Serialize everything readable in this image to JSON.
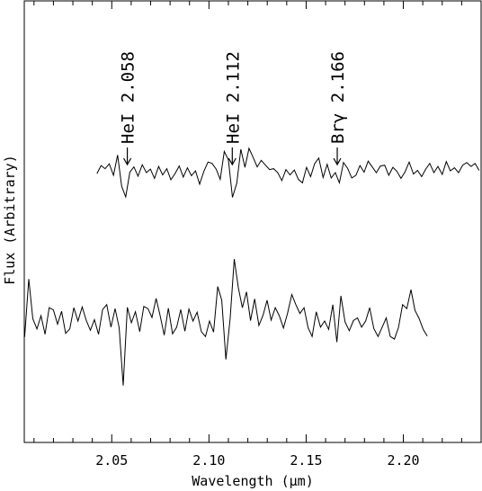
{
  "chart_data": {
    "type": "line",
    "title": "",
    "xlabel": "Wavelength (μm)",
    "ylabel": "Flux (Arbitrary)",
    "xlim": [
      2.005,
      2.24
    ],
    "ylim": [
      0,
      1
    ],
    "yticks_visible": false,
    "grid": false,
    "xticks": [
      {
        "value": 2.05,
        "label": "2.05"
      },
      {
        "value": 2.1,
        "label": "2.10"
      },
      {
        "value": 2.15,
        "label": "2.15"
      },
      {
        "value": 2.2,
        "label": "2.20"
      }
    ],
    "annotations": [
      {
        "wavelength": 2.058,
        "label": "HeI 2.058"
      },
      {
        "wavelength": 2.112,
        "label": "HeI 2.112"
      },
      {
        "wavelength": 2.166,
        "label": "Brγ 2.166"
      }
    ],
    "series": [
      {
        "x": [
          2.0424,
          2.0445,
          2.0466,
          2.0487,
          2.0509,
          2.053,
          2.0551,
          2.0572,
          2.0593,
          2.0614,
          2.0635,
          2.0657,
          2.0678,
          2.0699,
          2.072,
          2.0741,
          2.0762,
          2.0783,
          2.0804,
          2.0826,
          2.0847,
          2.0868,
          2.0889,
          2.091,
          2.0931,
          2.0952,
          2.0974,
          2.0995,
          2.1016,
          2.1037,
          2.1058,
          2.1079,
          2.11,
          2.1121,
          2.1143,
          2.1164,
          2.1185,
          2.1206,
          2.1227,
          2.1248,
          2.1269,
          2.1291,
          2.1312,
          2.1333,
          2.1354,
          2.1375,
          2.1396,
          2.1417,
          2.1439,
          2.146,
          2.1481,
          2.1502,
          2.1523,
          2.1544,
          2.1565,
          2.1587,
          2.1608,
          2.1629,
          2.165,
          2.1671,
          2.1692,
          2.1713,
          2.1735,
          2.1756,
          2.1777,
          2.1798,
          2.1819,
          2.184,
          2.1861,
          2.1882,
          2.1904,
          2.1925,
          2.1946,
          2.1967,
          2.1988,
          2.2009,
          2.203,
          2.2052,
          2.2073,
          2.2094,
          2.2115,
          2.2136,
          2.2157,
          2.2178,
          2.22,
          2.2221,
          2.2242,
          2.2263,
          2.2284,
          2.2305,
          2.2326,
          2.2348,
          2.2369,
          2.239
        ],
        "y": [
          0.609,
          0.627,
          0.62,
          0.631,
          0.605,
          0.651,
          0.58,
          0.556,
          0.612,
          0.624,
          0.603,
          0.629,
          0.611,
          0.619,
          0.598,
          0.625,
          0.606,
          0.62,
          0.595,
          0.609,
          0.626,
          0.601,
          0.622,
          0.604,
          0.615,
          0.585,
          0.614,
          0.635,
          0.632,
          0.619,
          0.596,
          0.659,
          0.64,
          0.555,
          0.587,
          0.664,
          0.623,
          0.666,
          0.646,
          0.624,
          0.639,
          0.628,
          0.618,
          0.62,
          0.611,
          0.593,
          0.618,
          0.606,
          0.617,
          0.596,
          0.588,
          0.623,
          0.602,
          0.632,
          0.644,
          0.6,
          0.63,
          0.599,
          0.611,
          0.588,
          0.634,
          0.621,
          0.599,
          0.605,
          0.627,
          0.612,
          0.637,
          0.624,
          0.611,
          0.626,
          0.628,
          0.605,
          0.623,
          0.614,
          0.598,
          0.613,
          0.635,
          0.608,
          0.616,
          0.602,
          0.619,
          0.632,
          0.611,
          0.625,
          0.607,
          0.636,
          0.615,
          0.622,
          0.611,
          0.628,
          0.634,
          0.625,
          0.632,
          0.616
        ]
      },
      {
        "x": [
          2.0052,
          2.0073,
          2.0094,
          2.0115,
          2.0136,
          2.0157,
          2.0178,
          2.02,
          2.0221,
          2.0242,
          2.0263,
          2.0284,
          2.0305,
          2.0326,
          2.0348,
          2.0369,
          2.039,
          2.0411,
          2.0432,
          2.0453,
          2.0474,
          2.0496,
          2.0517,
          2.0538,
          2.0559,
          2.058,
          2.0601,
          2.0622,
          2.0644,
          2.0665,
          2.0686,
          2.0707,
          2.0728,
          2.0749,
          2.077,
          2.0791,
          2.0813,
          2.0834,
          2.0855,
          2.0876,
          2.0897,
          2.0918,
          2.0939,
          2.0961,
          2.0982,
          2.1003,
          2.1024,
          2.1045,
          2.1066,
          2.1087,
          2.1109,
          2.113,
          2.1151,
          2.1172,
          2.1193,
          2.1214,
          2.1235,
          2.1257,
          2.1278,
          2.1299,
          2.132,
          2.1341,
          2.1362,
          2.1383,
          2.1404,
          2.1426,
          2.1447,
          2.1468,
          2.1489,
          2.151,
          2.1531,
          2.1552,
          2.1574,
          2.1595,
          2.1616,
          2.1637,
          2.1658,
          2.1679,
          2.17,
          2.1722,
          2.1743,
          2.1764,
          2.1785,
          2.1806,
          2.1827,
          2.1848,
          2.187,
          2.1891,
          2.1912,
          2.1933,
          2.1954,
          2.1975,
          2.1996,
          2.2018,
          2.2039,
          2.206,
          2.2081,
          2.2102,
          2.2123
        ],
        "y": [
          0.239,
          0.37,
          0.28,
          0.257,
          0.287,
          0.245,
          0.305,
          0.3,
          0.268,
          0.297,
          0.247,
          0.257,
          0.305,
          0.275,
          0.307,
          0.276,
          0.254,
          0.278,
          0.245,
          0.301,
          0.312,
          0.261,
          0.303,
          0.26,
          0.129,
          0.306,
          0.271,
          0.296,
          0.251,
          0.308,
          0.303,
          0.283,
          0.326,
          0.287,
          0.243,
          0.304,
          0.246,
          0.261,
          0.301,
          0.252,
          0.302,
          0.275,
          0.295,
          0.251,
          0.24,
          0.275,
          0.25,
          0.353,
          0.322,
          0.188,
          0.28,
          0.415,
          0.351,
          0.305,
          0.341,
          0.276,
          0.325,
          0.265,
          0.288,
          0.322,
          0.277,
          0.305,
          0.287,
          0.259,
          0.292,
          0.335,
          0.312,
          0.292,
          0.305,
          0.26,
          0.24,
          0.296,
          0.261,
          0.275,
          0.256,
          0.312,
          0.227,
          0.332,
          0.273,
          0.253,
          0.276,
          0.282,
          0.261,
          0.275,
          0.305,
          0.258,
          0.24,
          0.261,
          0.282,
          0.24,
          0.234,
          0.26,
          0.312,
          0.303,
          0.346,
          0.299,
          0.281,
          0.256,
          0.241
        ]
      }
    ]
  }
}
